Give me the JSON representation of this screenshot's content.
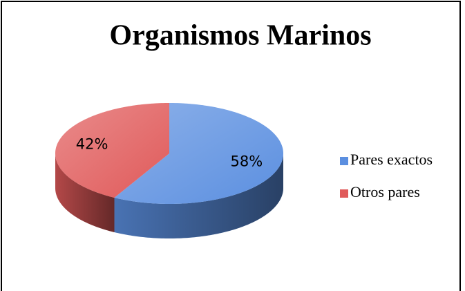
{
  "chart_data": {
    "type": "pie",
    "title": "Organismos Marinos",
    "categories": [
      "Pares exactos",
      "Otros pares"
    ],
    "values": [
      58,
      42
    ],
    "value_labels": [
      "58%",
      "42%"
    ],
    "colors": [
      "#5b8fe0",
      "#e05a5a"
    ],
    "legend": "right"
  }
}
